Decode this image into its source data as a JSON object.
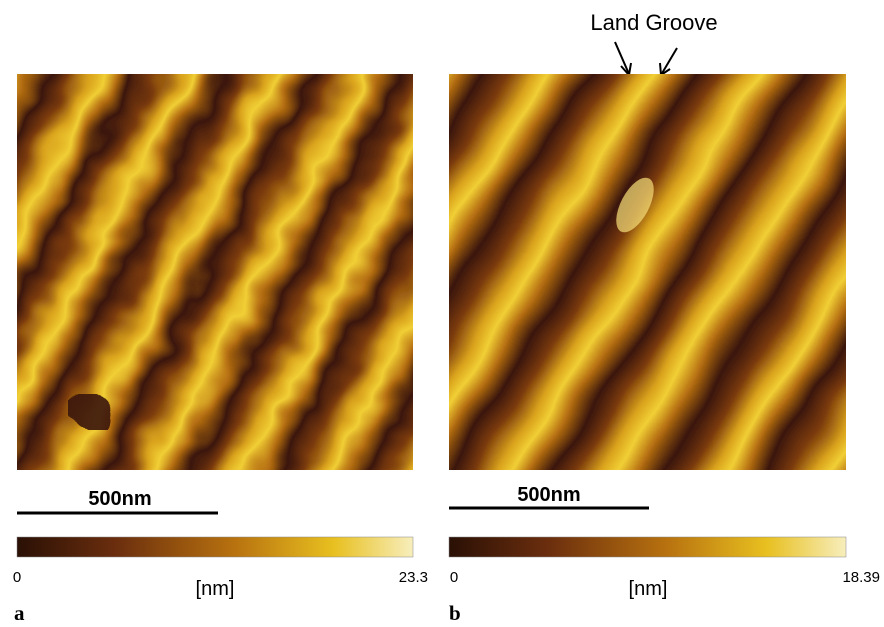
{
  "annotation": "Land Groove",
  "panels": [
    {
      "label": "a",
      "scale_bar": "500nm",
      "colorbar": {
        "min": 0,
        "max": 23.3,
        "unit": "[nm]"
      }
    },
    {
      "label": "b",
      "scale_bar": "500nm",
      "colorbar": {
        "min": 0,
        "max": 18.39,
        "unit": "[nm]"
      }
    }
  ]
}
